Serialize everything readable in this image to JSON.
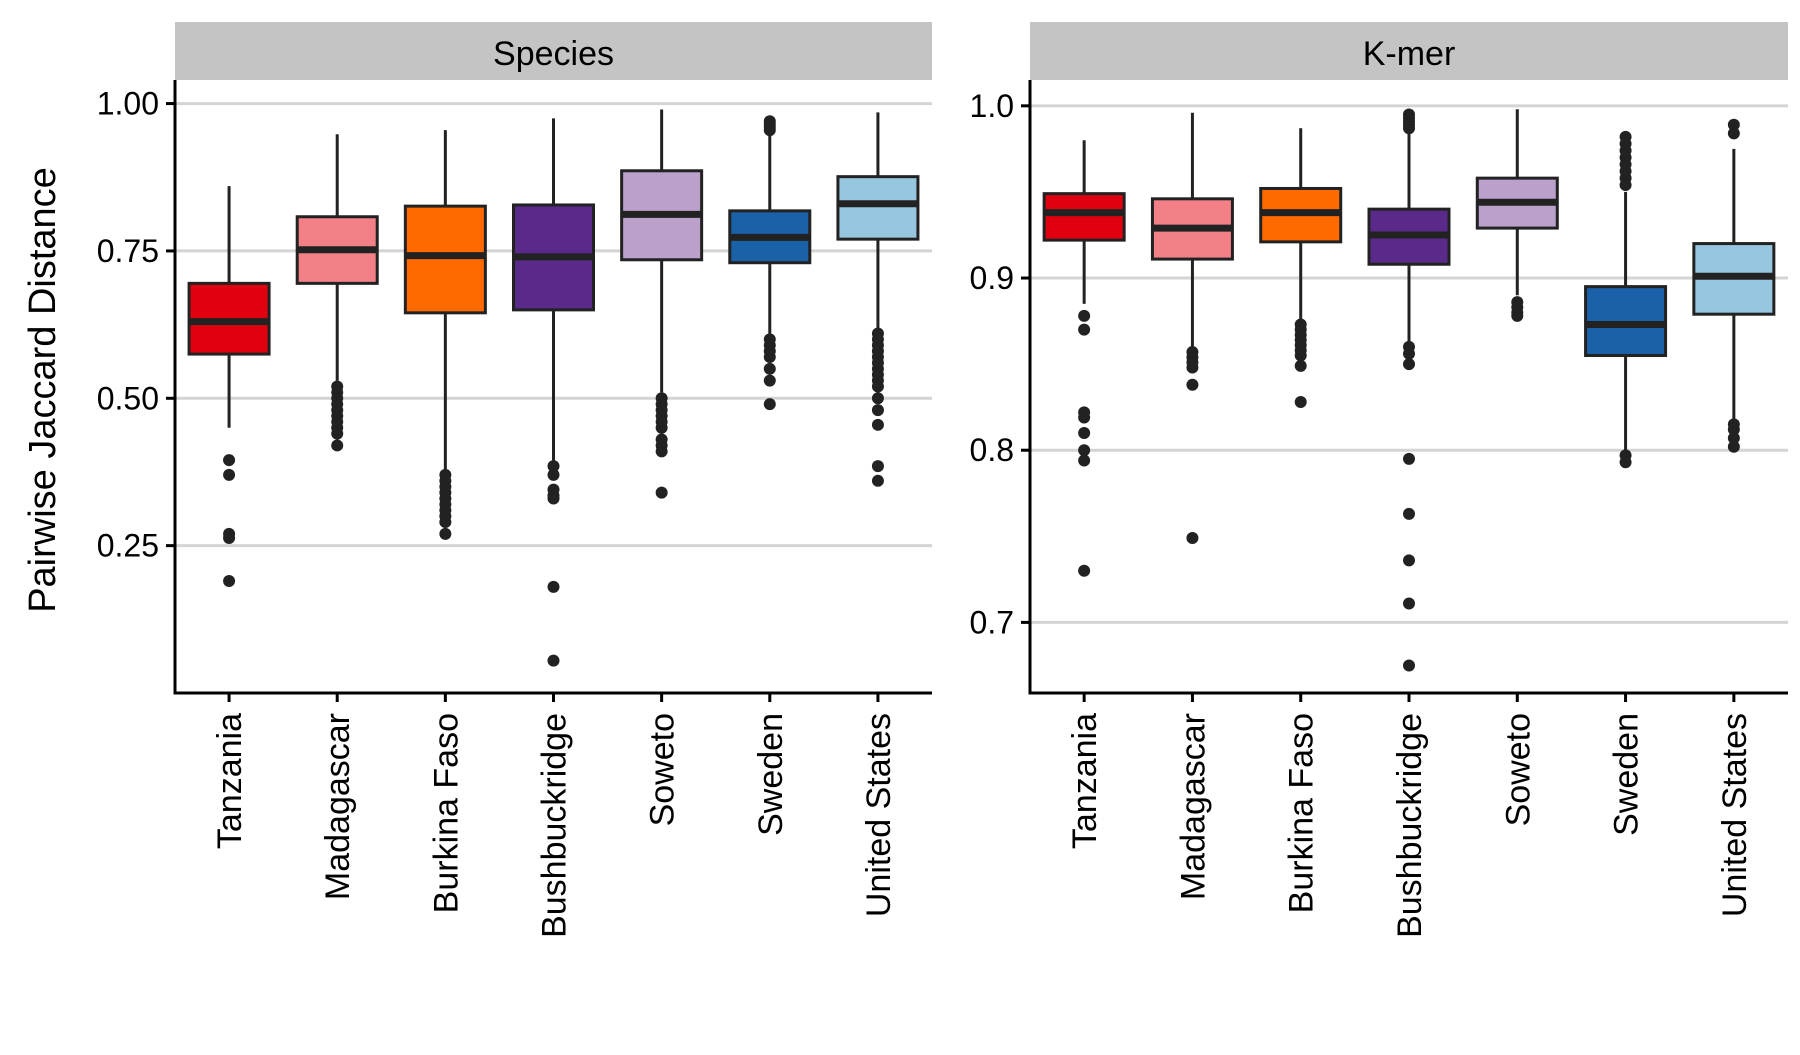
{
  "chart_data": {
    "type": "boxplot",
    "ylabel": "Pairwise Jaccard Distance",
    "categories": [
      "Tanzania",
      "Madagascar",
      "Burkina Faso",
      "Bushbuckridge",
      "Soweto",
      "Sweden",
      "United States"
    ],
    "colors": {
      "Tanzania": "#e1000f",
      "Madagascar": "#f28086",
      "Burkina Faso": "#ff6a00",
      "Bushbuckridge": "#5a2a8a",
      "Soweto": "#bba0cc",
      "Sweden": "#1b61a8",
      "United States": "#97c7df"
    },
    "grid": "horizontal",
    "panels": [
      {
        "strip": "Species",
        "ylim": [
          0.0,
          1.04
        ],
        "yticks": [
          0.25,
          0.5,
          0.75,
          1.0
        ],
        "ytick_labels": [
          "0.25",
          "0.50",
          "0.75",
          "1.00"
        ],
        "boxes": [
          {
            "category": "Tanzania",
            "lower_whisker": 0.45,
            "q1": 0.575,
            "median": 0.63,
            "q3": 0.695,
            "upper_whisker": 0.86,
            "outliers": [
              0.395,
              0.37,
              0.27,
              0.263,
              0.19
            ]
          },
          {
            "category": "Madagascar",
            "lower_whisker": 0.53,
            "q1": 0.695,
            "median": 0.752,
            "q3": 0.808,
            "upper_whisker": 0.948,
            "outliers": [
              0.52,
              0.51,
              0.5,
              0.49,
              0.48,
              0.47,
              0.46,
              0.45,
              0.44,
              0.42
            ]
          },
          {
            "category": "Burkina Faso",
            "lower_whisker": 0.375,
            "q1": 0.645,
            "median": 0.742,
            "q3": 0.826,
            "upper_whisker": 0.955,
            "outliers": [
              0.37,
              0.36,
              0.35,
              0.34,
              0.33,
              0.32,
              0.31,
              0.3,
              0.29,
              0.27
            ]
          },
          {
            "category": "Bushbuckridge",
            "lower_whisker": 0.39,
            "q1": 0.65,
            "median": 0.74,
            "q3": 0.828,
            "upper_whisker": 0.975,
            "outliers": [
              0.385,
              0.37,
              0.345,
              0.335,
              0.33,
              0.18,
              0.055
            ]
          },
          {
            "category": "Soweto",
            "lower_whisker": 0.51,
            "q1": 0.735,
            "median": 0.812,
            "q3": 0.886,
            "upper_whisker": 0.99,
            "outliers": [
              0.5,
              0.49,
              0.48,
              0.47,
              0.46,
              0.45,
              0.43,
              0.42,
              0.41,
              0.34
            ]
          },
          {
            "category": "Sweden",
            "lower_whisker": 0.61,
            "q1": 0.73,
            "median": 0.773,
            "q3": 0.818,
            "upper_whisker": 0.955,
            "outliers": [
              0.97,
              0.965,
              0.96,
              0.955,
              0.6,
              0.59,
              0.58,
              0.57,
              0.55,
              0.53,
              0.49
            ]
          },
          {
            "category": "United States",
            "lower_whisker": 0.615,
            "q1": 0.77,
            "median": 0.83,
            "q3": 0.876,
            "upper_whisker": 0.985,
            "outliers": [
              0.61,
              0.6,
              0.59,
              0.58,
              0.57,
              0.56,
              0.55,
              0.54,
              0.53,
              0.52,
              0.5,
              0.48,
              0.455,
              0.385,
              0.36
            ]
          }
        ]
      },
      {
        "strip": "K-mer",
        "ylim": [
          0.659,
          1.015
        ],
        "yticks": [
          0.7,
          0.8,
          0.9,
          1.0
        ],
        "ytick_labels": [
          "0.7",
          "0.8",
          "0.9",
          "1.0"
        ],
        "boxes": [
          {
            "category": "Tanzania",
            "lower_whisker": 0.885,
            "q1": 0.922,
            "median": 0.938,
            "q3": 0.949,
            "upper_whisker": 0.98,
            "outliers": [
              0.878,
              0.87,
              0.822,
              0.819,
              0.81,
              0.8,
              0.794,
              0.73
            ]
          },
          {
            "category": "Madagascar",
            "lower_whisker": 0.86,
            "q1": 0.911,
            "median": 0.929,
            "q3": 0.946,
            "upper_whisker": 0.996,
            "outliers": [
              0.857,
              0.854,
              0.851,
              0.848,
              0.838,
              0.749
            ]
          },
          {
            "category": "Burkina Faso",
            "lower_whisker": 0.875,
            "q1": 0.921,
            "median": 0.938,
            "q3": 0.952,
            "upper_whisker": 0.987,
            "outliers": [
              0.873,
              0.87,
              0.867,
              0.864,
              0.861,
              0.858,
              0.855,
              0.849,
              0.828
            ]
          },
          {
            "category": "Bushbuckridge",
            "lower_whisker": 0.862,
            "q1": 0.908,
            "median": 0.925,
            "q3": 0.94,
            "upper_whisker": 0.985,
            "outliers": [
              0.995,
              0.993,
              0.991,
              0.989,
              0.987,
              0.86,
              0.856,
              0.85,
              0.795,
              0.763,
              0.736,
              0.711,
              0.675
            ]
          },
          {
            "category": "Soweto",
            "lower_whisker": 0.89,
            "q1": 0.929,
            "median": 0.944,
            "q3": 0.958,
            "upper_whisker": 0.998,
            "outliers": [
              0.886,
              0.883,
              0.88,
              0.878
            ]
          },
          {
            "category": "Sweden",
            "lower_whisker": 0.8,
            "q1": 0.855,
            "median": 0.873,
            "q3": 0.895,
            "upper_whisker": 0.95,
            "outliers": [
              0.982,
              0.978,
              0.974,
              0.97,
              0.966,
              0.962,
              0.958,
              0.954,
              0.797,
              0.793
            ]
          },
          {
            "category": "United States",
            "lower_whisker": 0.818,
            "q1": 0.879,
            "median": 0.901,
            "q3": 0.92,
            "upper_whisker": 0.975,
            "outliers": [
              0.989,
              0.984,
              0.815,
              0.812,
              0.807,
              0.802
            ]
          }
        ]
      }
    ]
  }
}
